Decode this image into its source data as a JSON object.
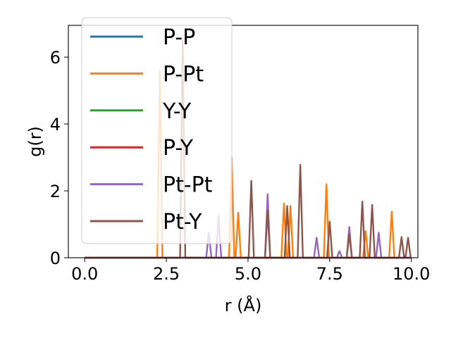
{
  "chart_data": {
    "type": "line",
    "title": "",
    "xlabel": "r (Å)",
    "ylabel": "g(r)",
    "xlim": [
      -0.5,
      10.2
    ],
    "ylim": [
      0,
      6.95
    ],
    "xticks": [
      0.0,
      2.5,
      5.0,
      7.5,
      10.0
    ],
    "xtick_labels": [
      "0.0",
      "2.5",
      "5.0",
      "7.5",
      "10.0"
    ],
    "yticks": [
      0,
      2,
      4,
      6
    ],
    "ytick_labels": [
      "0",
      "2",
      "4",
      "6"
    ],
    "grid": false,
    "legend_position": "top-left",
    "series": [
      {
        "name": "P-P",
        "color": "#1f77b4",
        "peaks": []
      },
      {
        "name": "P-Pt",
        "color": "#ff7f0e",
        "peaks": [
          {
            "r": 2.3,
            "g": 5.6
          },
          {
            "r": 4.5,
            "g": 3.0
          },
          {
            "r": 4.7,
            "g": 1.35
          },
          {
            "r": 6.1,
            "g": 1.62
          },
          {
            "r": 6.3,
            "g": 1.55
          },
          {
            "r": 7.4,
            "g": 2.2
          },
          {
            "r": 8.6,
            "g": 0.8
          },
          {
            "r": 9.4,
            "g": 1.38
          }
        ]
      },
      {
        "name": "Y-Y",
        "color": "#2ca02c",
        "peaks": []
      },
      {
        "name": "P-Y",
        "color": "#d62728",
        "peaks": []
      },
      {
        "name": "Pt-Pt",
        "color": "#9467bd",
        "peaks": [
          {
            "r": 3.8,
            "g": 0.75
          },
          {
            "r": 4.1,
            "g": 1.25
          },
          {
            "r": 5.6,
            "g": 1.9
          },
          {
            "r": 7.1,
            "g": 0.6
          },
          {
            "r": 7.8,
            "g": 0.2
          },
          {
            "r": 8.1,
            "g": 0.92
          },
          {
            "r": 9.0,
            "g": 0.75
          }
        ]
      },
      {
        "name": "Pt-Y",
        "color": "#8c564b",
        "peaks": [
          {
            "r": 3.0,
            "g": 6.5
          },
          {
            "r": 5.1,
            "g": 2.3
          },
          {
            "r": 5.6,
            "g": 1.4
          },
          {
            "r": 6.2,
            "g": 1.55
          },
          {
            "r": 6.6,
            "g": 2.78
          },
          {
            "r": 7.5,
            "g": 1.08
          },
          {
            "r": 8.1,
            "g": 0.72
          },
          {
            "r": 8.5,
            "g": 1.68
          },
          {
            "r": 8.8,
            "g": 1.58
          },
          {
            "r": 9.7,
            "g": 0.62
          },
          {
            "r": 9.9,
            "g": 0.6
          }
        ]
      }
    ]
  }
}
